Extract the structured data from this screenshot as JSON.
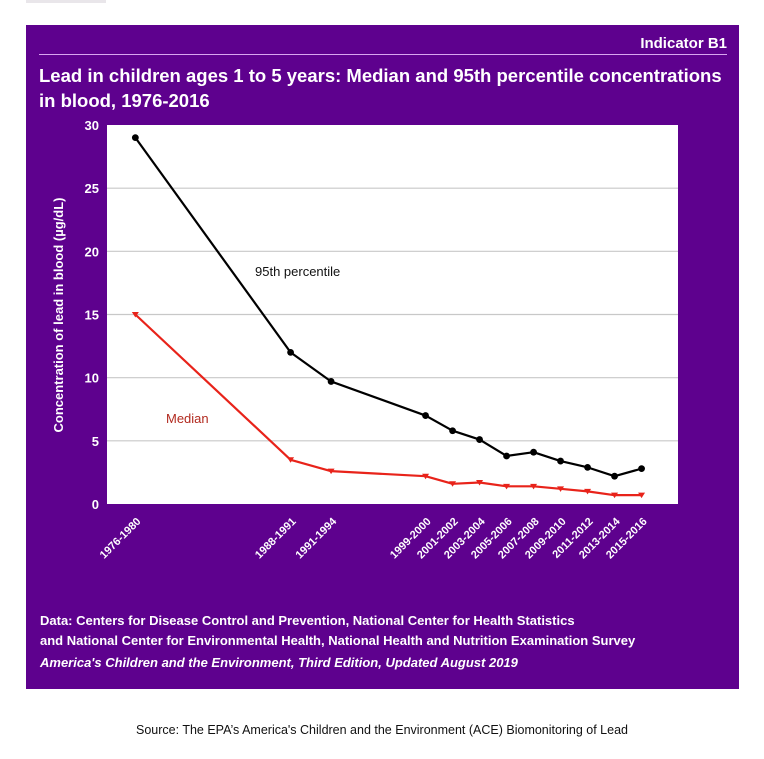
{
  "header": {
    "indicator": "Indicator B1",
    "title": "Lead in children ages 1 to 5 years: Median and 95th percentile concentrations in blood, 1976-2016"
  },
  "colors": {
    "panel": "#5e018e",
    "p95_line": "#000000",
    "median_line": "#e8231a",
    "median_label": "#b22a1f",
    "gridline": "#c8c8c8"
  },
  "chart_data": {
    "type": "line",
    "title": "Lead in children ages 1 to 5 years: Median and 95th percentile concentrations in blood, 1976-2016",
    "xlabel": "",
    "ylabel": "Concentration of lead in blood (µg/dL)",
    "ylim": [
      0,
      30
    ],
    "yticks": [
      0,
      5,
      10,
      15,
      20,
      25,
      30
    ],
    "grid": true,
    "categories": [
      "1976-1980",
      "1988-1991",
      "1991-1994",
      "1999-2000",
      "2001-2002",
      "2003-2004",
      "2005-2006",
      "2007-2008",
      "2009-2010",
      "2011-2012",
      "2013-2014",
      "2015-2016"
    ],
    "x_positions_years": [
      1978,
      1989.5,
      1992.5,
      1999.5,
      2001.5,
      2003.5,
      2005.5,
      2007.5,
      2009.5,
      2011.5,
      2013.5,
      2015.5
    ],
    "series": [
      {
        "name": "95th percentile",
        "marker": "circle",
        "values": [
          29.0,
          12.0,
          9.7,
          7.0,
          5.8,
          5.1,
          3.8,
          4.1,
          3.4,
          2.9,
          2.2,
          2.8
        ]
      },
      {
        "name": "Median",
        "marker": "triangle-down",
        "values": [
          15.0,
          3.5,
          2.6,
          2.2,
          1.6,
          1.7,
          1.4,
          1.4,
          1.2,
          1.0,
          0.7,
          0.7
        ]
      }
    ],
    "annotations": [
      {
        "text": "95th percentile",
        "series": "95th percentile"
      },
      {
        "text": "Median",
        "series": "Median"
      }
    ]
  },
  "footer": {
    "data_line1": "Data: Centers for Disease Control and Prevention, National Center for Health Statistics",
    "data_line2": "and National Center for Environmental Health, National Health and Nutrition Examination Survey",
    "edition": "America's Children and the Environment, Third Edition, Updated August 2019"
  },
  "source": "Source: The EPA’s America's Children and the Environment (ACE) Biomonitoring of Lead"
}
